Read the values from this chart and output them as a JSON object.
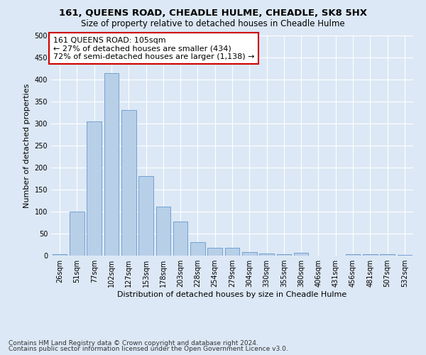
{
  "title1": "161, QUEENS ROAD, CHEADLE HULME, CHEADLE, SK8 5HX",
  "title2": "Size of property relative to detached houses in Cheadle Hulme",
  "xlabel": "Distribution of detached houses by size in Cheadle Hulme",
  "ylabel": "Number of detached properties",
  "categories": [
    "26sqm",
    "51sqm",
    "77sqm",
    "102sqm",
    "127sqm",
    "153sqm",
    "178sqm",
    "203sqm",
    "228sqm",
    "254sqm",
    "279sqm",
    "304sqm",
    "330sqm",
    "355sqm",
    "380sqm",
    "406sqm",
    "431sqm",
    "456sqm",
    "481sqm",
    "507sqm",
    "532sqm"
  ],
  "values": [
    4,
    100,
    305,
    415,
    330,
    180,
    112,
    77,
    30,
    18,
    18,
    8,
    5,
    3,
    6,
    0,
    0,
    4,
    3,
    3,
    2
  ],
  "bar_color": "#b8cfe8",
  "bar_edge_color": "#6699cc",
  "annotation_box_text": "161 QUEENS ROAD: 105sqm\n← 27% of detached houses are smaller (434)\n72% of semi-detached houses are larger (1,138) →",
  "annotation_box_color": "white",
  "annotation_box_edge_color": "#cc0000",
  "ylim": [
    0,
    500
  ],
  "yticks": [
    0,
    50,
    100,
    150,
    200,
    250,
    300,
    350,
    400,
    450,
    500
  ],
  "footnote1": "Contains HM Land Registry data © Crown copyright and database right 2024.",
  "footnote2": "Contains public sector information licensed under the Open Government Licence v3.0.",
  "background_color": "#dce8f5",
  "grid_color": "white",
  "title1_fontsize": 9.5,
  "title2_fontsize": 8.5,
  "axis_label_fontsize": 8,
  "tick_fontsize": 7,
  "annotation_fontsize": 8
}
